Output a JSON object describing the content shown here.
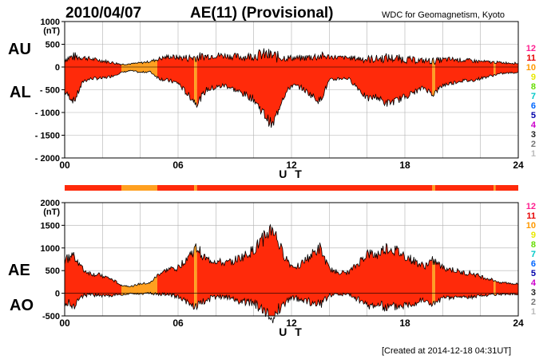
{
  "header": {
    "date": "2010/04/07",
    "title": "AE(11) (Provisional)",
    "source": "WDC for Geomagnetism, Kyoto"
  },
  "footer": {
    "created": "[Created at 2014-12-18 04:31UT]"
  },
  "station_scale": {
    "labels": [
      "12",
      "11",
      "10",
      "9",
      "8",
      "7",
      "6",
      "5",
      "4",
      "3",
      "2",
      "1"
    ],
    "colors": [
      "#ff2090",
      "#e60000",
      "#ff9900",
      "#e8e800",
      "#66dd00",
      "#00c8c8",
      "#0066ff",
      "#0000aa",
      "#cc00cc",
      "#222222",
      "#777777",
      "#bbbbbb"
    ]
  },
  "colors": {
    "fill_11": "#ff2a0a",
    "fill_10": "#ffa020",
    "fill_9": "#f0e000",
    "trace": "#000000",
    "grid": "#b0b0b0"
  },
  "chart_data": [
    {
      "type": "area",
      "name": "AU/AL",
      "left_labels": [
        "AU",
        "AL"
      ],
      "unit": "(nT)",
      "x_ticks": [
        "00",
        "06",
        "12",
        "18",
        "24"
      ],
      "x_label": "U T",
      "xlim": [
        0,
        24
      ],
      "ylim": [
        -2000,
        1000
      ],
      "y_ticks": [
        "1000",
        "500",
        "0",
        "- 500",
        "- 1000",
        "- 1500",
        "- 2000"
      ],
      "y_tick_values": [
        1000,
        500,
        0,
        -500,
        -1000,
        -1500,
        -2000
      ],
      "grid": true,
      "series": [
        {
          "name": "AU",
          "x": [
            0,
            0.5,
            1,
            1.5,
            2,
            2.5,
            3,
            3.5,
            4,
            4.5,
            5,
            5.5,
            6,
            6.5,
            7,
            7.5,
            8,
            8.5,
            9,
            9.5,
            10,
            10.5,
            11,
            11.5,
            12,
            12.5,
            13,
            13.5,
            14,
            14.5,
            15,
            15.5,
            16,
            16.5,
            17,
            17.5,
            18,
            18.5,
            19,
            19.5,
            20,
            20.5,
            21,
            21.5,
            22,
            22.5,
            23,
            23.5,
            24
          ],
          "values": [
            180,
            230,
            210,
            170,
            140,
            100,
            60,
            70,
            90,
            120,
            180,
            230,
            210,
            200,
            220,
            240,
            260,
            250,
            230,
            220,
            250,
            280,
            240,
            210,
            200,
            190,
            220,
            240,
            230,
            210,
            200,
            190,
            170,
            180,
            200,
            190,
            170,
            150,
            140,
            130,
            160,
            170,
            150,
            140,
            120,
            110,
            100,
            90,
            80
          ]
        },
        {
          "name": "AL",
          "x": [
            0,
            0.5,
            1,
            1.5,
            2,
            2.5,
            3,
            3.5,
            4,
            4.5,
            5,
            5.5,
            6,
            6.5,
            7,
            7.5,
            8,
            8.5,
            9,
            9.5,
            10,
            10.5,
            11,
            11.5,
            12,
            12.5,
            13,
            13.5,
            14,
            14.5,
            15,
            15.5,
            16,
            16.5,
            17,
            17.5,
            18,
            18.5,
            19,
            19.5,
            20,
            20.5,
            21,
            21.5,
            22,
            22.5,
            23,
            23.5,
            24
          ],
          "values": [
            -550,
            -750,
            -300,
            -250,
            -250,
            -200,
            -120,
            -80,
            -120,
            -100,
            -250,
            -300,
            -350,
            -600,
            -800,
            -500,
            -450,
            -400,
            -500,
            -600,
            -700,
            -1000,
            -1300,
            -700,
            -400,
            -450,
            -600,
            -750,
            -300,
            -250,
            -250,
            -450,
            -700,
            -650,
            -800,
            -750,
            -650,
            -550,
            -450,
            -600,
            -400,
            -350,
            -300,
            -300,
            -250,
            -200,
            -150,
            -130,
            -120
          ]
        }
      ]
    },
    {
      "type": "area",
      "name": "AE/AO",
      "left_labels": [
        "AE",
        "AO"
      ],
      "unit": "(nT)",
      "x_ticks": [
        "00",
        "06",
        "12",
        "18",
        "24"
      ],
      "x_label": "U T",
      "xlim": [
        0,
        24
      ],
      "ylim": [
        -500,
        2000
      ],
      "y_ticks": [
        "2000",
        "1500",
        "1000",
        "500",
        "0",
        "-500"
      ],
      "y_tick_values": [
        2000,
        1500,
        1000,
        500,
        0,
        -500
      ],
      "grid": true,
      "series": [
        {
          "name": "AE",
          "x": [
            0,
            0.5,
            1,
            1.5,
            2,
            2.5,
            3,
            3.5,
            4,
            4.5,
            5,
            5.5,
            6,
            6.5,
            7,
            7.5,
            8,
            8.5,
            9,
            9.5,
            10,
            10.5,
            11,
            11.5,
            12,
            12.5,
            13,
            13.5,
            14,
            14.5,
            15,
            15.5,
            16,
            16.5,
            17,
            17.5,
            18,
            18.5,
            19,
            19.5,
            20,
            20.5,
            21,
            21.5,
            22,
            22.5,
            23,
            23.5,
            24
          ],
          "values": [
            730,
            850,
            500,
            420,
            390,
            300,
            180,
            150,
            210,
            220,
            430,
            530,
            560,
            800,
            1000,
            740,
            710,
            650,
            730,
            820,
            950,
            1200,
            1450,
            910,
            600,
            640,
            820,
            990,
            530,
            460,
            450,
            640,
            870,
            830,
            1000,
            940,
            820,
            700,
            590,
            730,
            560,
            520,
            450,
            440,
            370,
            310,
            250,
            220,
            200
          ]
        },
        {
          "name": "AO",
          "x": [
            0,
            0.5,
            1,
            1.5,
            2,
            2.5,
            3,
            3.5,
            4,
            4.5,
            5,
            5.5,
            6,
            6.5,
            7,
            7.5,
            8,
            8.5,
            9,
            9.5,
            10,
            10.5,
            11,
            11.5,
            12,
            12.5,
            13,
            13.5,
            14,
            14.5,
            15,
            15.5,
            16,
            16.5,
            17,
            17.5,
            18,
            18.5,
            19,
            19.5,
            20,
            20.5,
            21,
            21.5,
            22,
            22.5,
            23,
            23.5,
            24
          ],
          "values": [
            -185,
            -260,
            -45,
            -40,
            -55,
            -50,
            -30,
            -5,
            -15,
            10,
            -35,
            -35,
            -70,
            -200,
            -290,
            -130,
            -95,
            -75,
            -135,
            -190,
            -225,
            -360,
            -530,
            -245,
            -100,
            -130,
            -190,
            -255,
            -35,
            -20,
            -25,
            -130,
            -265,
            -235,
            -300,
            -280,
            -240,
            -200,
            -155,
            -235,
            -120,
            -90,
            -75,
            -80,
            -65,
            -45,
            -25,
            -20,
            -20
          ]
        }
      ]
    }
  ],
  "station_count_bands": [
    {
      "from": 0,
      "to": 3.0,
      "count": 11
    },
    {
      "from": 3.0,
      "to": 4.9,
      "count": 10
    },
    {
      "from": 4.9,
      "to": 6.85,
      "count": 11
    },
    {
      "from": 6.85,
      "to": 7.0,
      "count": 10
    },
    {
      "from": 7.0,
      "to": 19.45,
      "count": 11
    },
    {
      "from": 19.45,
      "to": 19.6,
      "count": 10
    },
    {
      "from": 19.6,
      "to": 22.7,
      "count": 11
    },
    {
      "from": 22.7,
      "to": 22.8,
      "count": 10
    },
    {
      "from": 22.8,
      "to": 24,
      "count": 11
    }
  ]
}
